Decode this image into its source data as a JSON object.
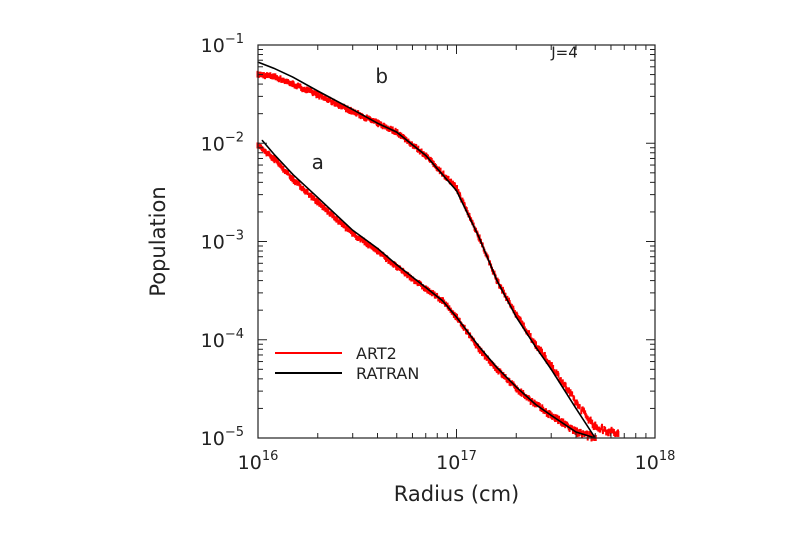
{
  "chart_data": {
    "type": "line",
    "title": "",
    "xlabel": "Radius (cm)",
    "ylabel": "Population",
    "xscale": "log",
    "yscale": "log",
    "xlim": [
      1e+16,
      1e+18
    ],
    "ylim": [
      1e-05,
      0.1
    ],
    "x_ticks": [
      {
        "value": 1e+16,
        "base": "10",
        "exp": "16"
      },
      {
        "value": 1e+17,
        "base": "10",
        "exp": "17"
      },
      {
        "value": 1e+18,
        "base": "10",
        "exp": "18"
      }
    ],
    "y_ticks": [
      {
        "value": 1e-05,
        "base": "10",
        "exp": "−5"
      },
      {
        "value": 0.0001,
        "base": "10",
        "exp": "−4"
      },
      {
        "value": 0.001,
        "base": "10",
        "exp": "−3"
      },
      {
        "value": 0.01,
        "base": "10",
        "exp": "−2"
      },
      {
        "value": 0.1,
        "base": "10",
        "exp": "−1"
      }
    ],
    "grid": false,
    "legend_position": "lower-left",
    "annotations": [
      {
        "text": "J=4",
        "x": 3.5e+17,
        "y": 0.075
      },
      {
        "text": "a",
        "x": 2e+16,
        "y": 0.0055
      },
      {
        "text": "b",
        "x": 4.2e+16,
        "y": 0.041
      }
    ],
    "series": [
      {
        "name": "ART2",
        "color": "#ff0000",
        "style": "scatter-dense",
        "curve": "b",
        "x": [
          1e+16,
          1.2e+16,
          1.5e+16,
          2e+16,
          3e+16,
          4e+16,
          5e+16,
          7e+16,
          1e+17,
          1.3e+17,
          1.6e+17,
          2e+17,
          2.5e+17,
          3e+17,
          4e+17,
          5e+17,
          6.5e+17
        ],
        "y": [
          0.05,
          0.048,
          0.04,
          0.031,
          0.021,
          0.016,
          0.013,
          0.0075,
          0.0035,
          0.0011,
          0.0004,
          0.00018,
          9e-05,
          5.5e-05,
          2.3e-05,
          1.3e-05,
          1.1e-05
        ]
      },
      {
        "name": "ART2",
        "color": "#ff0000",
        "style": "scatter-dense",
        "curve": "a",
        "x": [
          1e+16,
          1.2e+16,
          1.5e+16,
          2e+16,
          3e+16,
          4e+16,
          5e+16,
          7e+16,
          8.5e+16,
          1e+17,
          1.3e+17,
          1.6e+17,
          2e+17,
          2.5e+17,
          3e+17,
          4e+17,
          5e+17
        ],
        "y": [
          0.0095,
          0.007,
          0.0043,
          0.0025,
          0.0012,
          0.0008,
          0.00055,
          0.00033,
          0.00025,
          0.00017,
          8e-05,
          5e-05,
          3.2e-05,
          2.2e-05,
          1.7e-05,
          1.15e-05,
          1e-05
        ]
      },
      {
        "name": "RATRAN",
        "color": "#000000",
        "style": "line",
        "curve": "b",
        "x": [
          1e+16,
          1.2e+16,
          1.5e+16,
          2e+16,
          3e+16,
          4e+16,
          5e+16,
          7e+16,
          1e+17,
          1.3e+17,
          1.6e+17,
          2e+17,
          2.5e+17,
          3e+17,
          4e+17,
          5e+17
        ],
        "y": [
          0.067,
          0.058,
          0.047,
          0.034,
          0.022,
          0.016,
          0.013,
          0.0075,
          0.0033,
          0.0011,
          0.0004,
          0.00017,
          8.5e-05,
          5e-05,
          2e-05,
          1e-05
        ]
      },
      {
        "name": "RATRAN",
        "color": "#000000",
        "style": "line",
        "curve": "a",
        "x": [
          1.05e+16,
          1.2e+16,
          1.5e+16,
          2e+16,
          3e+16,
          4e+16,
          5e+16,
          7e+16,
          8.5e+16,
          1e+17,
          1.3e+17,
          1.6e+17,
          2e+17,
          2.5e+17,
          3e+17,
          4e+17,
          5e+17
        ],
        "y": [
          0.0107,
          0.0078,
          0.0048,
          0.0028,
          0.0013,
          0.00085,
          0.00058,
          0.00034,
          0.00025,
          0.00017,
          8.5e-05,
          5.2e-05,
          3.3e-05,
          2.2e-05,
          1.7e-05,
          1.15e-05,
          1e-05
        ]
      }
    ],
    "legend": [
      {
        "label": "ART2",
        "color": "#ff0000"
      },
      {
        "label": "RATRAN",
        "color": "#000000"
      }
    ]
  }
}
